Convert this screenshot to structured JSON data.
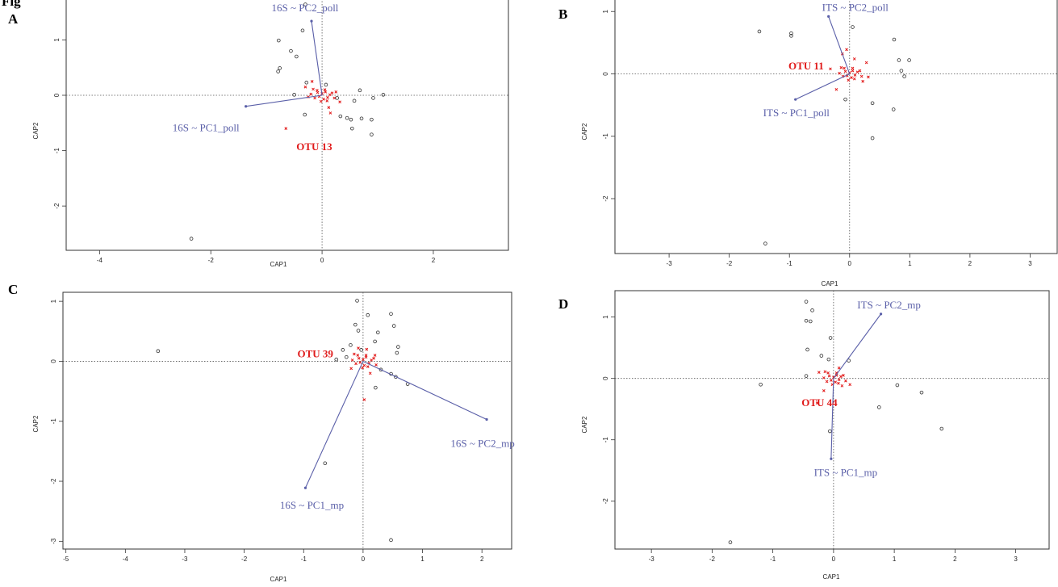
{
  "figure_label": "Fig",
  "colors": {
    "frame": "#333333",
    "points": "#333333",
    "species": "#e21a1a",
    "vectors": "#5a5fa8",
    "otu_label": "#e01b1b",
    "ref_lines": "#555555"
  },
  "chart_data": [
    {
      "panel": "A",
      "type": "scatter",
      "xlabel": "CAP1",
      "ylabel": "CAP2",
      "xlim": [
        -4.6,
        3.35
      ],
      "ylim": [
        -2.8,
        1.75
      ],
      "xticks": [
        -4,
        -2,
        0,
        2
      ],
      "yticks": [
        -2,
        -1,
        0,
        1
      ],
      "grid": false,
      "reference_lines": true,
      "sites": [
        [
          -0.3,
          1.64
        ],
        [
          -0.78,
          0.99
        ],
        [
          -0.35,
          1.17
        ],
        [
          -0.56,
          0.8
        ],
        [
          -0.79,
          0.43
        ],
        [
          -0.76,
          0.49
        ],
        [
          -0.46,
          0.7
        ],
        [
          -0.28,
          0.23
        ],
        [
          0.07,
          0.19
        ],
        [
          -0.5,
          0.01
        ],
        [
          0.27,
          -0.05
        ],
        [
          0.58,
          -0.1
        ],
        [
          0.92,
          -0.05
        ],
        [
          1.1,
          0.01
        ],
        [
          0.68,
          0.09
        ],
        [
          0.33,
          -0.38
        ],
        [
          0.45,
          -0.41
        ],
        [
          0.52,
          -0.44
        ],
        [
          0.71,
          -0.42
        ],
        [
          0.89,
          -0.44
        ],
        [
          0.54,
          -0.6
        ],
        [
          0.89,
          -0.71
        ],
        [
          -0.31,
          -0.35
        ],
        [
          -2.35,
          -2.59
        ]
      ],
      "species": [
        [
          0.0,
          0.03
        ],
        [
          -0.05,
          -0.02
        ],
        [
          0.06,
          0.06
        ],
        [
          0.1,
          -0.04
        ],
        [
          -0.08,
          0.05
        ],
        [
          0.03,
          -0.07
        ],
        [
          0.14,
          0.01
        ],
        [
          -0.13,
          -0.05
        ],
        [
          0.05,
          0.1
        ],
        [
          -0.02,
          -0.11
        ],
        [
          0.18,
          0.04
        ],
        [
          -0.2,
          0.02
        ],
        [
          0.09,
          -0.1
        ],
        [
          -0.09,
          0.09
        ],
        [
          0.22,
          -0.05
        ],
        [
          -0.16,
          0.11
        ],
        [
          0.25,
          0.06
        ],
        [
          -0.25,
          -0.03
        ],
        [
          -0.18,
          0.25
        ],
        [
          0.12,
          -0.22
        ],
        [
          0.32,
          -0.12
        ],
        [
          -0.65,
          -0.6
        ],
        [
          0.15,
          -0.32
        ],
        [
          -0.3,
          0.15
        ]
      ],
      "vectors": [
        {
          "label": "16S ~ PC2_poll",
          "x": -0.19,
          "y": 1.34
        },
        {
          "label": "16S ~ PC1_poll",
          "x": -1.37,
          "y": -0.2
        }
      ],
      "otu_label": {
        "text": "OTU  13",
        "x": -0.52,
        "y": -0.93
      }
    },
    {
      "panel": "B",
      "type": "scatter",
      "xlabel": "CAP1",
      "ylabel": "CAP2",
      "xlim": [
        -3.9,
        3.45
      ],
      "ylim": [
        -2.88,
        1.21
      ],
      "xticks": [
        -3,
        -2,
        -1,
        0,
        1,
        2,
        3
      ],
      "yticks": [
        -2,
        -1,
        0,
        1
      ],
      "grid": false,
      "reference_lines": true,
      "sites": [
        [
          -1.5,
          0.68
        ],
        [
          -0.97,
          0.61
        ],
        [
          -0.97,
          0.65
        ],
        [
          0.05,
          0.75
        ],
        [
          0.74,
          0.55
        ],
        [
          0.82,
          0.22
        ],
        [
          0.99,
          0.22
        ],
        [
          0.86,
          0.05
        ],
        [
          0.91,
          -0.04
        ],
        [
          0.38,
          -0.47
        ],
        [
          0.73,
          -0.57
        ],
        [
          0.38,
          -1.03
        ],
        [
          -0.07,
          -0.41
        ],
        [
          -1.4,
          -2.72
        ]
      ],
      "species": [
        [
          0.0,
          0.02
        ],
        [
          -0.04,
          -0.03
        ],
        [
          0.05,
          0.05
        ],
        [
          0.09,
          -0.02
        ],
        [
          -0.07,
          0.04
        ],
        [
          0.03,
          -0.06
        ],
        [
          0.13,
          0.03
        ],
        [
          -0.11,
          -0.04
        ],
        [
          0.05,
          0.09
        ],
        [
          -0.02,
          -0.1
        ],
        [
          0.17,
          0.05
        ],
        [
          -0.17,
          0.01
        ],
        [
          0.08,
          -0.08
        ],
        [
          -0.09,
          0.09
        ],
        [
          0.2,
          -0.04
        ],
        [
          -0.14,
          0.1
        ],
        [
          0.28,
          0.18
        ],
        [
          -0.12,
          0.32
        ],
        [
          -0.32,
          0.08
        ],
        [
          0.08,
          0.24
        ],
        [
          -0.22,
          -0.25
        ],
        [
          0.22,
          -0.12
        ],
        [
          0.31,
          -0.05
        ],
        [
          -0.05,
          0.39
        ]
      ],
      "vectors": [
        {
          "label": "ITS ~ PC2_poll",
          "x": -0.35,
          "y": 0.92
        },
        {
          "label": "ITS ~ PC1_poll",
          "x": -0.9,
          "y": -0.41
        }
      ],
      "otu_label": {
        "text": "OTU  11",
        "x": -1.07,
        "y": 0.12
      }
    },
    {
      "panel": "C",
      "type": "scatter",
      "xlabel": "CAP1",
      "ylabel": "CAP2",
      "xlim": [
        -5.05,
        2.5
      ],
      "ylim": [
        -3.13,
        1.15
      ],
      "xticks": [
        -5,
        -4,
        -3,
        -2,
        -1,
        0,
        1,
        2
      ],
      "yticks": [
        -3,
        -2,
        -1,
        0,
        1
      ],
      "grid": false,
      "reference_lines": true,
      "sites": [
        [
          -3.45,
          0.17
        ],
        [
          -0.1,
          1.01
        ],
        [
          0.08,
          0.77
        ],
        [
          0.47,
          0.79
        ],
        [
          0.52,
          0.59
        ],
        [
          -0.13,
          0.61
        ],
        [
          -0.08,
          0.51
        ],
        [
          0.25,
          0.48
        ],
        [
          0.2,
          0.33
        ],
        [
          -0.21,
          0.27
        ],
        [
          -0.03,
          0.19
        ],
        [
          -0.34,
          0.19
        ],
        [
          -0.28,
          0.07
        ],
        [
          -0.45,
          0.03
        ],
        [
          0.59,
          0.24
        ],
        [
          0.57,
          0.14
        ],
        [
          0.3,
          -0.14
        ],
        [
          0.47,
          -0.21
        ],
        [
          0.55,
          -0.26
        ],
        [
          0.75,
          -0.38
        ],
        [
          0.21,
          -0.44
        ],
        [
          -0.64,
          -1.7
        ],
        [
          0.47,
          -2.98
        ]
      ],
      "species": [
        [
          0.0,
          0.03
        ],
        [
          -0.05,
          -0.02
        ],
        [
          0.05,
          0.07
        ],
        [
          0.1,
          -0.03
        ],
        [
          -0.07,
          0.05
        ],
        [
          0.02,
          -0.07
        ],
        [
          0.14,
          0.02
        ],
        [
          -0.12,
          -0.04
        ],
        [
          0.05,
          0.1
        ],
        [
          -0.01,
          -0.11
        ],
        [
          0.18,
          0.05
        ],
        [
          -0.18,
          0.02
        ],
        [
          0.08,
          -0.09
        ],
        [
          -0.09,
          0.1
        ],
        [
          0.22,
          -0.06
        ],
        [
          -0.15,
          0.12
        ],
        [
          0.06,
          0.2
        ],
        [
          0.12,
          -0.2
        ],
        [
          -0.08,
          0.22
        ],
        [
          0.02,
          -0.64
        ],
        [
          0.2,
          0.1
        ],
        [
          -0.2,
          -0.12
        ]
      ],
      "vectors": [
        {
          "label": "16S ~ PC2_mp",
          "x": 2.08,
          "y": -0.97
        },
        {
          "label": "16S ~ PC1_mp",
          "x": -0.97,
          "y": -2.11
        }
      ],
      "otu_label": {
        "text": "OTU  39",
        "x": -1.16,
        "y": 0.12
      }
    },
    {
      "panel": "D",
      "type": "scatter",
      "xlabel": "CAP1",
      "ylabel": "CAP2",
      "xlim": [
        -3.6,
        3.55
      ],
      "ylim": [
        -2.78,
        1.43
      ],
      "xticks": [
        -3,
        -2,
        -1,
        0,
        1,
        2,
        3
      ],
      "yticks": [
        -2,
        -1,
        0,
        1
      ],
      "grid": false,
      "reference_lines": true,
      "sites": [
        [
          -0.45,
          1.25
        ],
        [
          -0.35,
          1.11
        ],
        [
          -0.45,
          0.94
        ],
        [
          -0.38,
          0.93
        ],
        [
          -0.05,
          0.66
        ],
        [
          -0.43,
          0.47
        ],
        [
          -0.2,
          0.37
        ],
        [
          -0.08,
          0.31
        ],
        [
          0.25,
          0.29
        ],
        [
          -0.45,
          0.04
        ],
        [
          -1.2,
          -0.1
        ],
        [
          1.05,
          -0.11
        ],
        [
          1.45,
          -0.23
        ],
        [
          1.78,
          -0.82
        ],
        [
          0.75,
          -0.47
        ],
        [
          -0.06,
          -0.86
        ],
        [
          -1.7,
          -2.67
        ]
      ],
      "species": [
        [
          0.0,
          0.02
        ],
        [
          -0.04,
          -0.03
        ],
        [
          0.05,
          0.05
        ],
        [
          0.09,
          -0.02
        ],
        [
          -0.07,
          0.04
        ],
        [
          0.03,
          -0.06
        ],
        [
          0.12,
          0.03
        ],
        [
          -0.11,
          -0.05
        ],
        [
          0.05,
          0.09
        ],
        [
          -0.02,
          -0.1
        ],
        [
          0.16,
          0.05
        ],
        [
          -0.16,
          0.01
        ],
        [
          0.08,
          -0.08
        ],
        [
          -0.09,
          0.09
        ],
        [
          0.2,
          -0.04
        ],
        [
          -0.14,
          0.11
        ],
        [
          0.27,
          -0.1
        ],
        [
          -0.16,
          -0.2
        ],
        [
          -0.24,
          0.1
        ],
        [
          -0.27,
          -0.4
        ],
        [
          0.09,
          0.17
        ],
        [
          0.14,
          -0.12
        ]
      ],
      "vectors": [
        {
          "label": "ITS ~ PC2_mp",
          "x": 0.78,
          "y": 1.05
        },
        {
          "label": "ITS ~ PC1_mp",
          "x": -0.04,
          "y": -1.31
        }
      ],
      "otu_label": {
        "text": "OTU  44",
        "x": -0.58,
        "y": -0.4
      }
    }
  ]
}
